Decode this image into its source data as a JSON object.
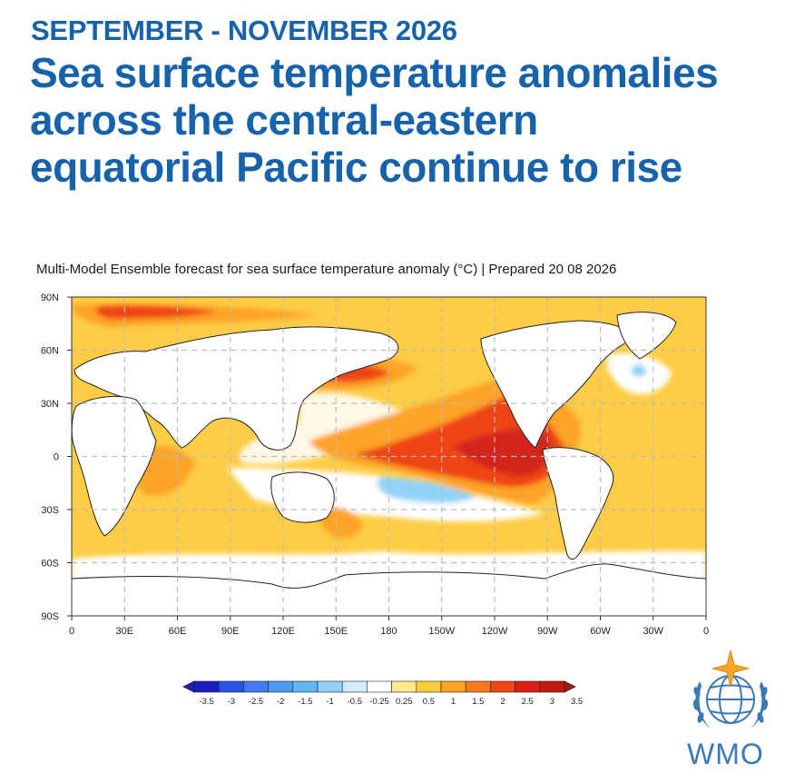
{
  "header": {
    "kicker": "SEPTEMBER - NOVEMBER 2026",
    "headline": "Sea surface temperature anomalies across the central-eastern equatorial Pacific continue to rise",
    "subtitle": "Multi-Model Ensemble forecast for sea surface temperature anomaly (°C) | Prepared 20 08 2026"
  },
  "map": {
    "lat_labels": [
      "90N",
      "60N",
      "30N",
      "0",
      "30S",
      "60S",
      "90S"
    ],
    "lon_labels": [
      "0",
      "30E",
      "60E",
      "90E",
      "120E",
      "150E",
      "180",
      "150W",
      "120W",
      "90W",
      "60W",
      "30W",
      "0"
    ],
    "grid_lines": "dashed",
    "projection": "plate carree, 0 to 360 longitude"
  },
  "colorbar": {
    "tick_labels": [
      "-3.5",
      "-3",
      "-2.5",
      "-2",
      "-1.5",
      "-1",
      "-0.5",
      "-0.25",
      "0.25",
      "0.5",
      "1",
      "1.5",
      "2",
      "2.5",
      "3",
      "3.5"
    ],
    "colors": [
      "#1d1dc4",
      "#2b52e6",
      "#3d7cef",
      "#4a9bf2",
      "#61b6f5",
      "#92d2f8",
      "#d2ecfb",
      "#ffffff",
      "#ffe98a",
      "#fecb3d",
      "#fda326",
      "#f97b1c",
      "#ef4516",
      "#dc1f12",
      "#c01b10"
    ],
    "unit": "°C"
  },
  "branding": {
    "org": "WMO",
    "logo_icon": "un-laurel-globe-icon"
  }
}
